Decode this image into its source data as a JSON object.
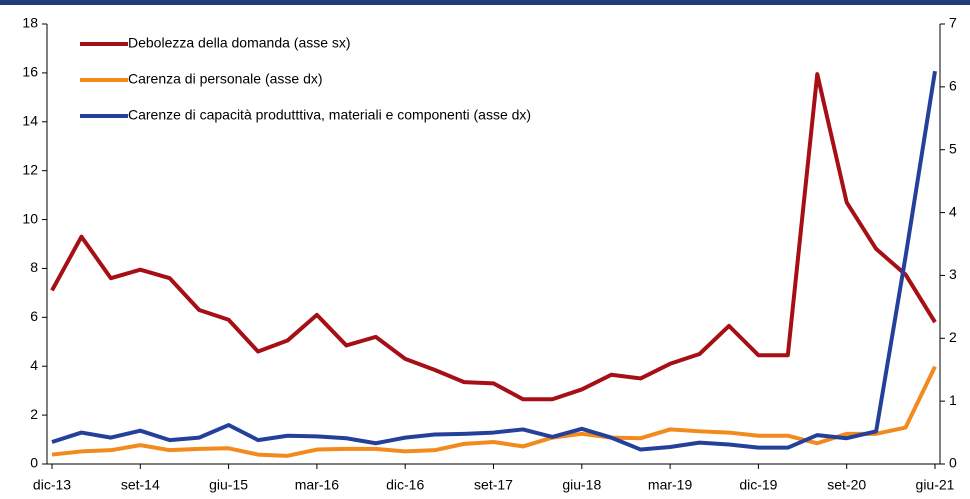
{
  "chart_data": {
    "type": "line",
    "categories": [
      "dic-13",
      null,
      null,
      "set-14",
      null,
      null,
      "giu-15",
      null,
      null,
      "mar-16",
      null,
      null,
      "dic-16",
      null,
      null,
      "set-17",
      null,
      null,
      "giu-18",
      null,
      null,
      "mar-19",
      null,
      null,
      "dic-19",
      null,
      null,
      "set-20",
      null,
      null,
      "giu-21"
    ],
    "series": [
      {
        "name": "Debolezza della domanda (asse sx)",
        "color": "#a50f15",
        "values": [
          7.1,
          9.3,
          7.6,
          7.95,
          7.6,
          6.3,
          5.9,
          4.6,
          5.05,
          6.1,
          4.85,
          5.2,
          4.3,
          3.85,
          3.35,
          3.3,
          2.65,
          2.65,
          3.05,
          3.65,
          3.5,
          4.1,
          4.5,
          5.65,
          4.45,
          4.45,
          15.95,
          10.7,
          8.8,
          7.75,
          5.8
        ]
      },
      {
        "name": "Carenza di personale (asse dx)",
        "color": "#f28a1e",
        "axis": "y2",
        "values": [
          0.15,
          0.2,
          0.22,
          0.3,
          0.22,
          0.24,
          0.25,
          0.15,
          0.13,
          0.23,
          0.24,
          0.24,
          0.2,
          0.22,
          0.32,
          0.35,
          0.28,
          0.42,
          0.48,
          0.42,
          0.41,
          0.55,
          0.52,
          0.5,
          0.45,
          0.45,
          0.33,
          0.48,
          0.48,
          0.58,
          1.55
        ]
      },
      {
        "name": "Carenze di capacità produtttiva, materiali e componenti (asse dx)",
        "color": "#25409a",
        "axis": "y2",
        "values": [
          0.35,
          0.5,
          0.42,
          0.53,
          0.38,
          0.42,
          0.62,
          0.38,
          0.45,
          0.44,
          0.41,
          0.33,
          0.42,
          0.47,
          0.48,
          0.5,
          0.55,
          0.43,
          0.56,
          0.42,
          0.23,
          0.27,
          0.34,
          0.31,
          0.26,
          0.26,
          0.46,
          0.41,
          0.52,
          3.3,
          6.25
        ]
      }
    ],
    "ylim": [
      0,
      18
    ],
    "yticks": [
      0,
      2,
      4,
      6,
      8,
      10,
      12,
      14,
      16,
      18
    ],
    "y2lim": [
      0,
      7
    ],
    "y2ticks": [
      0,
      1,
      2,
      3,
      4,
      5,
      6,
      7
    ],
    "legend": "top-left"
  }
}
